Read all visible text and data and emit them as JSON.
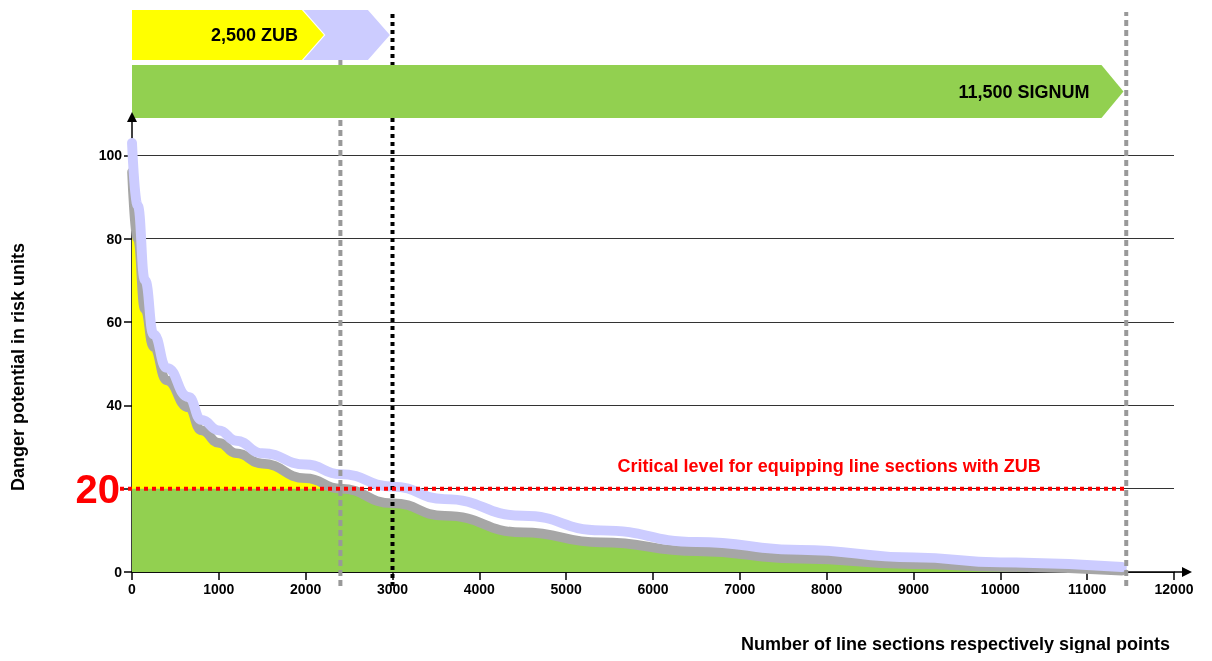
{
  "chart_data": {
    "type": "area",
    "xlabel": "Number of line sections respectively signal points",
    "ylabel": "Danger potential in risk units",
    "x": [
      0,
      65,
      150,
      250,
      400,
      650,
      800,
      1000,
      1200,
      1500,
      2000,
      2400,
      3000,
      3600,
      4500,
      5400,
      6500,
      7700,
      9000,
      10000,
      11400
    ],
    "stacked": true,
    "series": [
      {
        "color": "#92d050",
        "values": [
          20,
          20,
          20,
          20,
          20,
          20,
          20,
          20,
          20,
          20,
          20,
          20,
          16.5,
          13.5,
          9.5,
          7.1,
          5,
          3.2,
          1.9,
          1.2,
          0.3
        ]
      },
      {
        "color": "#ffff00",
        "x": [
          0,
          65,
          150,
          250,
          400,
          650,
          800,
          1000,
          1200,
          1500,
          2000,
          2400
        ],
        "values": [
          76,
          60,
          43,
          34,
          26,
          19.5,
          14,
          11,
          8.5,
          6,
          2.5,
          0
        ]
      },
      {
        "type": "line",
        "color": "#a6a6a6",
        "values": [
          96,
          80,
          63,
          54,
          46,
          39.5,
          34,
          31,
          28.5,
          26,
          22.5,
          20,
          16.5,
          13.5,
          9.5,
          7.1,
          5,
          3.2,
          1.9,
          1.2,
          0.3
        ]
      },
      {
        "type": "line",
        "color": "#ccccff",
        "values": [
          103,
          88,
          70,
          57,
          49,
          42,
          36.5,
          34,
          31.5,
          28.5,
          25.8,
          23.5,
          20.5,
          17.5,
          13.5,
          10,
          7.2,
          5.3,
          3.5,
          2.3,
          1.2
        ]
      }
    ],
    "xlim": [
      0,
      12000
    ],
    "xticks": [
      0,
      1000,
      2000,
      3000,
      4000,
      5000,
      6000,
      7000,
      8000,
      9000,
      10000,
      11000,
      12000
    ],
    "ylim": [
      0,
      108
    ],
    "yticks": [
      0,
      {
        "value": 20,
        "label": null
      },
      40,
      60,
      80,
      100
    ],
    "grid": "y",
    "annotations": [
      "20",
      "2,500 ZUB",
      "11,500 SIGNUM"
    ],
    "ref_lines": [
      {
        "axis": "y",
        "value": 20,
        "label": "Critical level for equipping line sections with ZUB",
        "color": "#ff0000",
        "line_style": "dotted"
      },
      {
        "axis": "x",
        "value": 2400,
        "color": "#999999",
        "line_style": "dashed"
      },
      {
        "axis": "x",
        "value": 3000,
        "color": "#000000",
        "line_style": "dotted"
      },
      {
        "axis": "x",
        "value": 11450,
        "color": "#999999",
        "line_style": "dashed"
      }
    ]
  }
}
